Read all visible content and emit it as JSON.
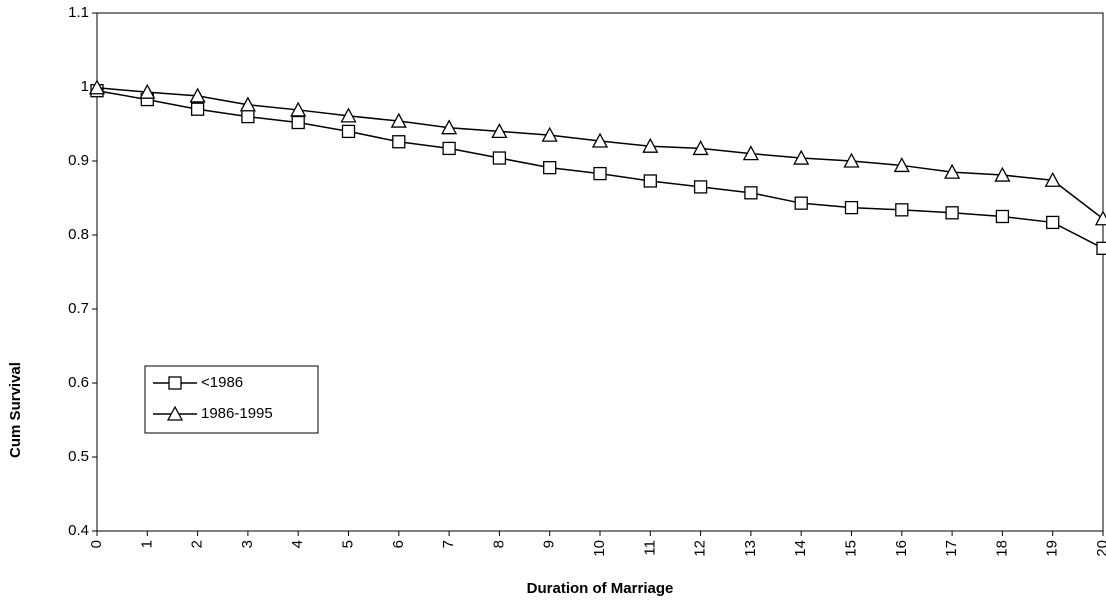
{
  "chart_data": {
    "type": "line",
    "x_label": "Duration of Marriage",
    "y_label": "Cum Survival",
    "x": [
      0,
      1,
      2,
      3,
      4,
      5,
      6,
      7,
      8,
      9,
      10,
      11,
      12,
      13,
      14,
      15,
      16,
      17,
      18,
      19,
      20
    ],
    "series": [
      {
        "name": "<1986",
        "color": "#000000",
        "marker": "square",
        "values": [
          0.995,
          0.983,
          0.97,
          0.96,
          0.952,
          0.94,
          0.926,
          0.917,
          0.904,
          0.891,
          0.883,
          0.873,
          0.865,
          0.857,
          0.843,
          0.837,
          0.834,
          0.83,
          0.825,
          0.817,
          0.782
        ]
      },
      {
        "name": "1986-1995",
        "color": "#000000",
        "marker": "triangle",
        "values": [
          0.999,
          0.993,
          0.988,
          0.976,
          0.969,
          0.961,
          0.954,
          0.945,
          0.94,
          0.935,
          0.927,
          0.92,
          0.917,
          0.91,
          0.904,
          0.9,
          0.894,
          0.885,
          0.881,
          0.874,
          0.822
        ]
      }
    ],
    "xlim": [
      0,
      20
    ],
    "xticks": [
      0,
      1,
      2,
      3,
      4,
      5,
      6,
      7,
      8,
      9,
      10,
      11,
      12,
      13,
      14,
      15,
      16,
      17,
      18,
      19,
      20
    ],
    "ylim": [
      0.4,
      1.1
    ],
    "yticks": [
      0.4,
      0.5,
      0.6,
      0.7,
      0.8,
      0.9,
      1,
      1.1
    ],
    "grid": false,
    "legend": "center-left"
  }
}
